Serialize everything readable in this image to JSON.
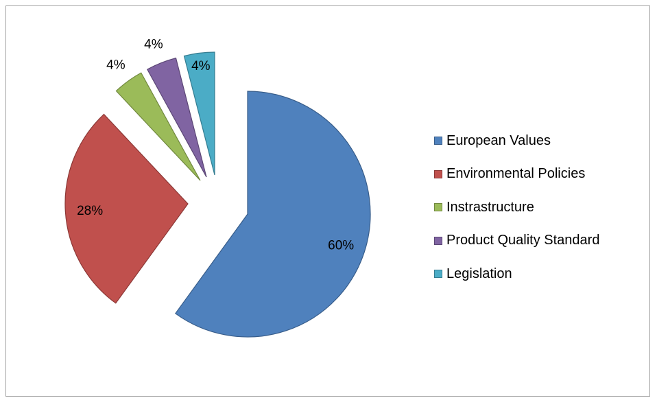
{
  "chart_data": {
    "type": "pie",
    "title": "",
    "slices": [
      {
        "label": "European Values",
        "value": 60,
        "data_label": "60%",
        "color": "#4f81bd",
        "stroke": "#385d8a"
      },
      {
        "label": "Environmental Policies",
        "value": 28,
        "data_label": "28%",
        "color": "#c0504d",
        "stroke": "#8c3836"
      },
      {
        "label": "Instrastructure",
        "value": 4,
        "data_label": "4%",
        "color": "#9bbb59",
        "stroke": "#71893f"
      },
      {
        "label": "Product Quality Standard",
        "value": 4,
        "data_label": "4%",
        "color": "#8064a2",
        "stroke": "#5c4776"
      },
      {
        "label": "Legislation",
        "value": 4,
        "data_label": "4%",
        "color": "#4bacc6",
        "stroke": "#357d91"
      }
    ],
    "legend_position": "right",
    "exploded": true
  }
}
